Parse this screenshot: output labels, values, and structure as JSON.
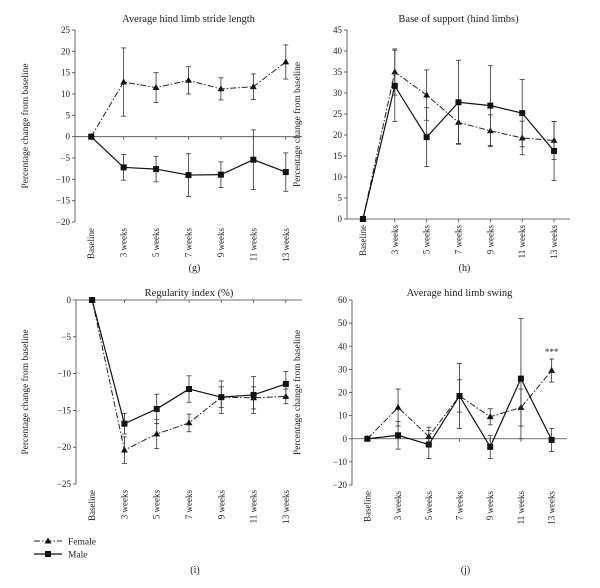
{
  "legend": {
    "female_label": "Female",
    "male_label": "Male"
  },
  "chart_data": [
    {
      "type": "line",
      "panel_label": "(g)",
      "title": "Average hind limb stride length",
      "ylabel": "Percentage change from baseline",
      "categories": [
        "Baseline",
        "3 weeks",
        "5 weeks",
        "7 weeks",
        "9 weeks",
        "11 weeks",
        "13 weeks"
      ],
      "ylim": [
        -20,
        25
      ],
      "yticks": [
        -20,
        -15,
        -10,
        -5,
        0,
        5,
        10,
        15,
        20,
        25
      ],
      "ytick_labels": [
        "−20",
        "−15",
        "−10",
        "−5",
        "0",
        "5",
        "10",
        "15",
        "20",
        "25"
      ],
      "annotation": "",
      "series": [
        {
          "name": "Female",
          "values": [
            0,
            12.8,
            11.5,
            13.2,
            11.2,
            11.7,
            17.5
          ],
          "errors": [
            0,
            8,
            3.5,
            3.2,
            2.6,
            3,
            4
          ]
        },
        {
          "name": "Male",
          "values": [
            0,
            -7.2,
            -7.6,
            -9,
            -8.9,
            -5.4,
            -8.3
          ],
          "errors": [
            0,
            3,
            3,
            5,
            3,
            7,
            4.5
          ]
        }
      ]
    },
    {
      "type": "line",
      "panel_label": "(h)",
      "title": "Base of support (hind limbs)",
      "ylabel": "Percentage change from baseline",
      "categories": [
        "Baseline",
        "3 weeks",
        "5 weeks",
        "7 weeks",
        "9 weeks",
        "11 weeks",
        "13 weeks"
      ],
      "ylim": [
        0,
        45
      ],
      "yticks": [
        0,
        5,
        10,
        15,
        20,
        25,
        30,
        35,
        40,
        45
      ],
      "ytick_labels": [
        "0",
        "5",
        "10",
        "15",
        "20",
        "25",
        "30",
        "35",
        "40",
        "45"
      ],
      "annotation": "",
      "series": [
        {
          "name": "Female",
          "values": [
            0,
            35,
            29.5,
            23,
            21,
            19.3,
            18.7
          ],
          "errors": [
            0,
            5.5,
            6,
            5,
            3.8,
            4,
            4.5
          ]
        },
        {
          "name": "Male",
          "values": [
            0,
            31.7,
            19.5,
            27.8,
            27,
            25.2,
            16.2
          ],
          "errors": [
            0,
            8.5,
            7,
            10,
            9.5,
            8,
            7
          ]
        }
      ]
    },
    {
      "type": "line",
      "panel_label": "(i)",
      "title": "Regularity index (%)",
      "ylabel": "Percentage change from baseline",
      "categories": [
        "Baseline",
        "3 weeks",
        "5 weeks",
        "7 weeks",
        "9 weeks",
        "11 weeks",
        "13 weeks"
      ],
      "ylim": [
        -25,
        0
      ],
      "yticks": [
        -25,
        -20,
        -15,
        -10,
        -5,
        0
      ],
      "ytick_labels": [
        "−25",
        "−20",
        "−15",
        "−10",
        "−5",
        "0"
      ],
      "annotation": "",
      "series": [
        {
          "name": "Female",
          "values": [
            0,
            -20.4,
            -18.2,
            -16.7,
            -13.2,
            -13.3,
            -13.1
          ],
          "errors": [
            0,
            1.8,
            2,
            1.2,
            1.4,
            1.5,
            1
          ]
        },
        {
          "name": "Male",
          "values": [
            0,
            -16.8,
            -14.8,
            -12.1,
            -13.2,
            -12.9,
            -11.4
          ],
          "errors": [
            0,
            1.4,
            2,
            1.8,
            2.2,
            2.5,
            1.7
          ]
        }
      ]
    },
    {
      "type": "line",
      "panel_label": "(j)",
      "title": "Average hind limb swing",
      "ylabel": "Percentage change from baseline",
      "categories": [
        "Baseline",
        "3 weeks",
        "5 weeks",
        "7 weeks",
        "9 weeks",
        "11 weeks",
        "13 weeks"
      ],
      "ylim": [
        -20,
        60
      ],
      "yticks": [
        -20,
        -10,
        0,
        10,
        20,
        30,
        40,
        50,
        60
      ],
      "ytick_labels": [
        "−20",
        "−10",
        "0",
        "10",
        "20",
        "30",
        "40",
        "50",
        "60"
      ],
      "annotation": "***",
      "annotation_index": 6,
      "series": [
        {
          "name": "Female",
          "values": [
            0,
            13.5,
            1,
            18.5,
            9.5,
            13.5,
            29.5
          ],
          "errors": [
            0,
            8,
            4,
            7,
            3.5,
            8,
            5
          ]
        },
        {
          "name": "Male",
          "values": [
            0,
            1.5,
            -2.5,
            18.5,
            -3.5,
            26,
            -0.5
          ],
          "errors": [
            0,
            6,
            6,
            14,
            5,
            26,
            5
          ]
        }
      ]
    }
  ]
}
